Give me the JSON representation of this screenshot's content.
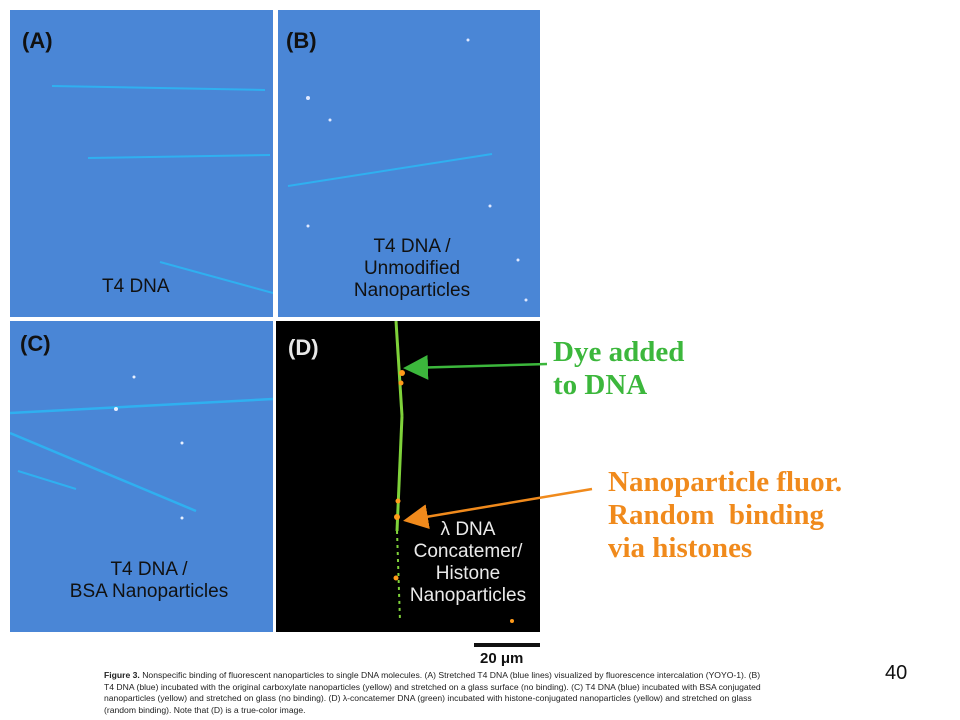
{
  "panels": {
    "a": {
      "label": "(A)",
      "caption": "T4 DNA"
    },
    "b": {
      "label": "(B)",
      "caption_lines": [
        "T4 DNA /",
        "Unmodified",
        "Nanoparticles"
      ]
    },
    "c": {
      "label": "(C)",
      "caption_lines": [
        "T4 DNA /",
        "BSA Nanoparticles"
      ]
    },
    "d": {
      "label": "(D)",
      "caption_lines": [
        "λ DNA",
        "Concatemer/",
        "Histone",
        "Nanoparticles"
      ]
    }
  },
  "annotations": {
    "dye": {
      "lines": [
        "Dye added",
        "to DNA"
      ],
      "color": "#3cb73c"
    },
    "nano": {
      "lines": [
        "Nanoparticle fluor.",
        "Random  binding",
        "via histones"
      ],
      "color": "#f08a1c"
    }
  },
  "scale_bar": {
    "label": "20 μm"
  },
  "figure_caption": {
    "lead": "Figure 3.",
    "text": "Nonspecific binding of fluorescent nanoparticles to single DNA molecules. (A) Stretched T4 DNA (blue lines) visualized by fluorescence intercalation (YOYO-1). (B) T4 DNA (blue) incubated with the original carboxylate nanoparticles (yellow) and stretched on a glass surface (no binding). (C) T4 DNA (blue) incubated with BSA conjugated nanoparticles (yellow) and stretched on glass (no binding). (D) λ-concatemer DNA (green) incubated with histone-conjugated nanoparticles (yellow) and stretched on glass (random binding). Note that (D) is a true-color image."
  },
  "slide_number": "40",
  "colors": {
    "panel_blue": "#4a86d6",
    "strand_blue": "#2fb0f0",
    "dna_green": "#7fd23a",
    "particle_orange": "#ff9a1a"
  }
}
